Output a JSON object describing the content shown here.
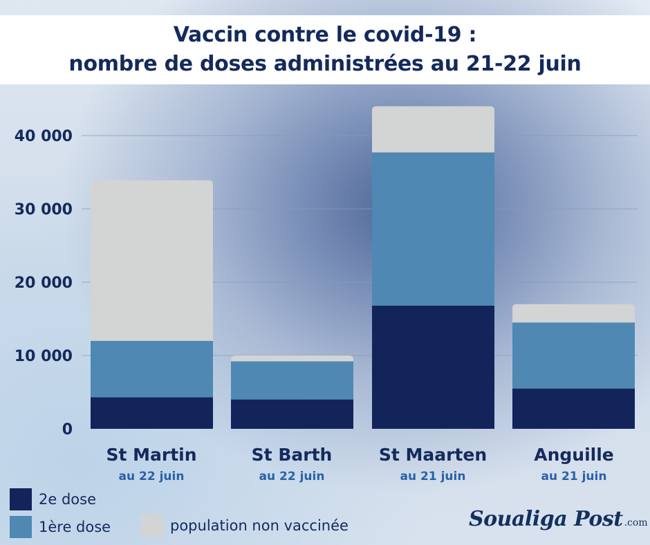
{
  "title": {
    "line1": "Vaccin contre le covid-19 :",
    "line2": "nombre de doses administrées au 21-22 juin"
  },
  "colors": {
    "dose2": "#12245a",
    "dose1": "#4f88b2",
    "unvaccinated": "#d3d4d4",
    "gridline": "#8a9bb6"
  },
  "chart_data": {
    "type": "bar",
    "stacked": true,
    "categories": [
      "St Martin",
      "St Barth",
      "St Maarten",
      "Anguille"
    ],
    "category_subtitles": [
      "au 22 juin",
      "au 22 juin",
      "au 21 juin",
      "au 21 juin"
    ],
    "series": [
      {
        "name": "2e dose",
        "values": [
          4300,
          4000,
          16800,
          5500
        ]
      },
      {
        "name": "1ère dose",
        "values": [
          7700,
          5200,
          20900,
          9000
        ]
      },
      {
        "name": "population non vaccinée",
        "values": [
          21900,
          800,
          6300,
          2500
        ]
      }
    ],
    "yticks": [
      0,
      10000,
      20000,
      30000,
      40000
    ],
    "ytick_labels": [
      "0",
      "10 000",
      "20 000",
      "30 000",
      "40 000"
    ],
    "ylim": [
      0,
      45000
    ],
    "grid": true,
    "legend_position": "bottom-left",
    "xlabel": "",
    "ylabel": ""
  },
  "logo": {
    "main": "Soualiga Post",
    "suffix": ".com"
  }
}
